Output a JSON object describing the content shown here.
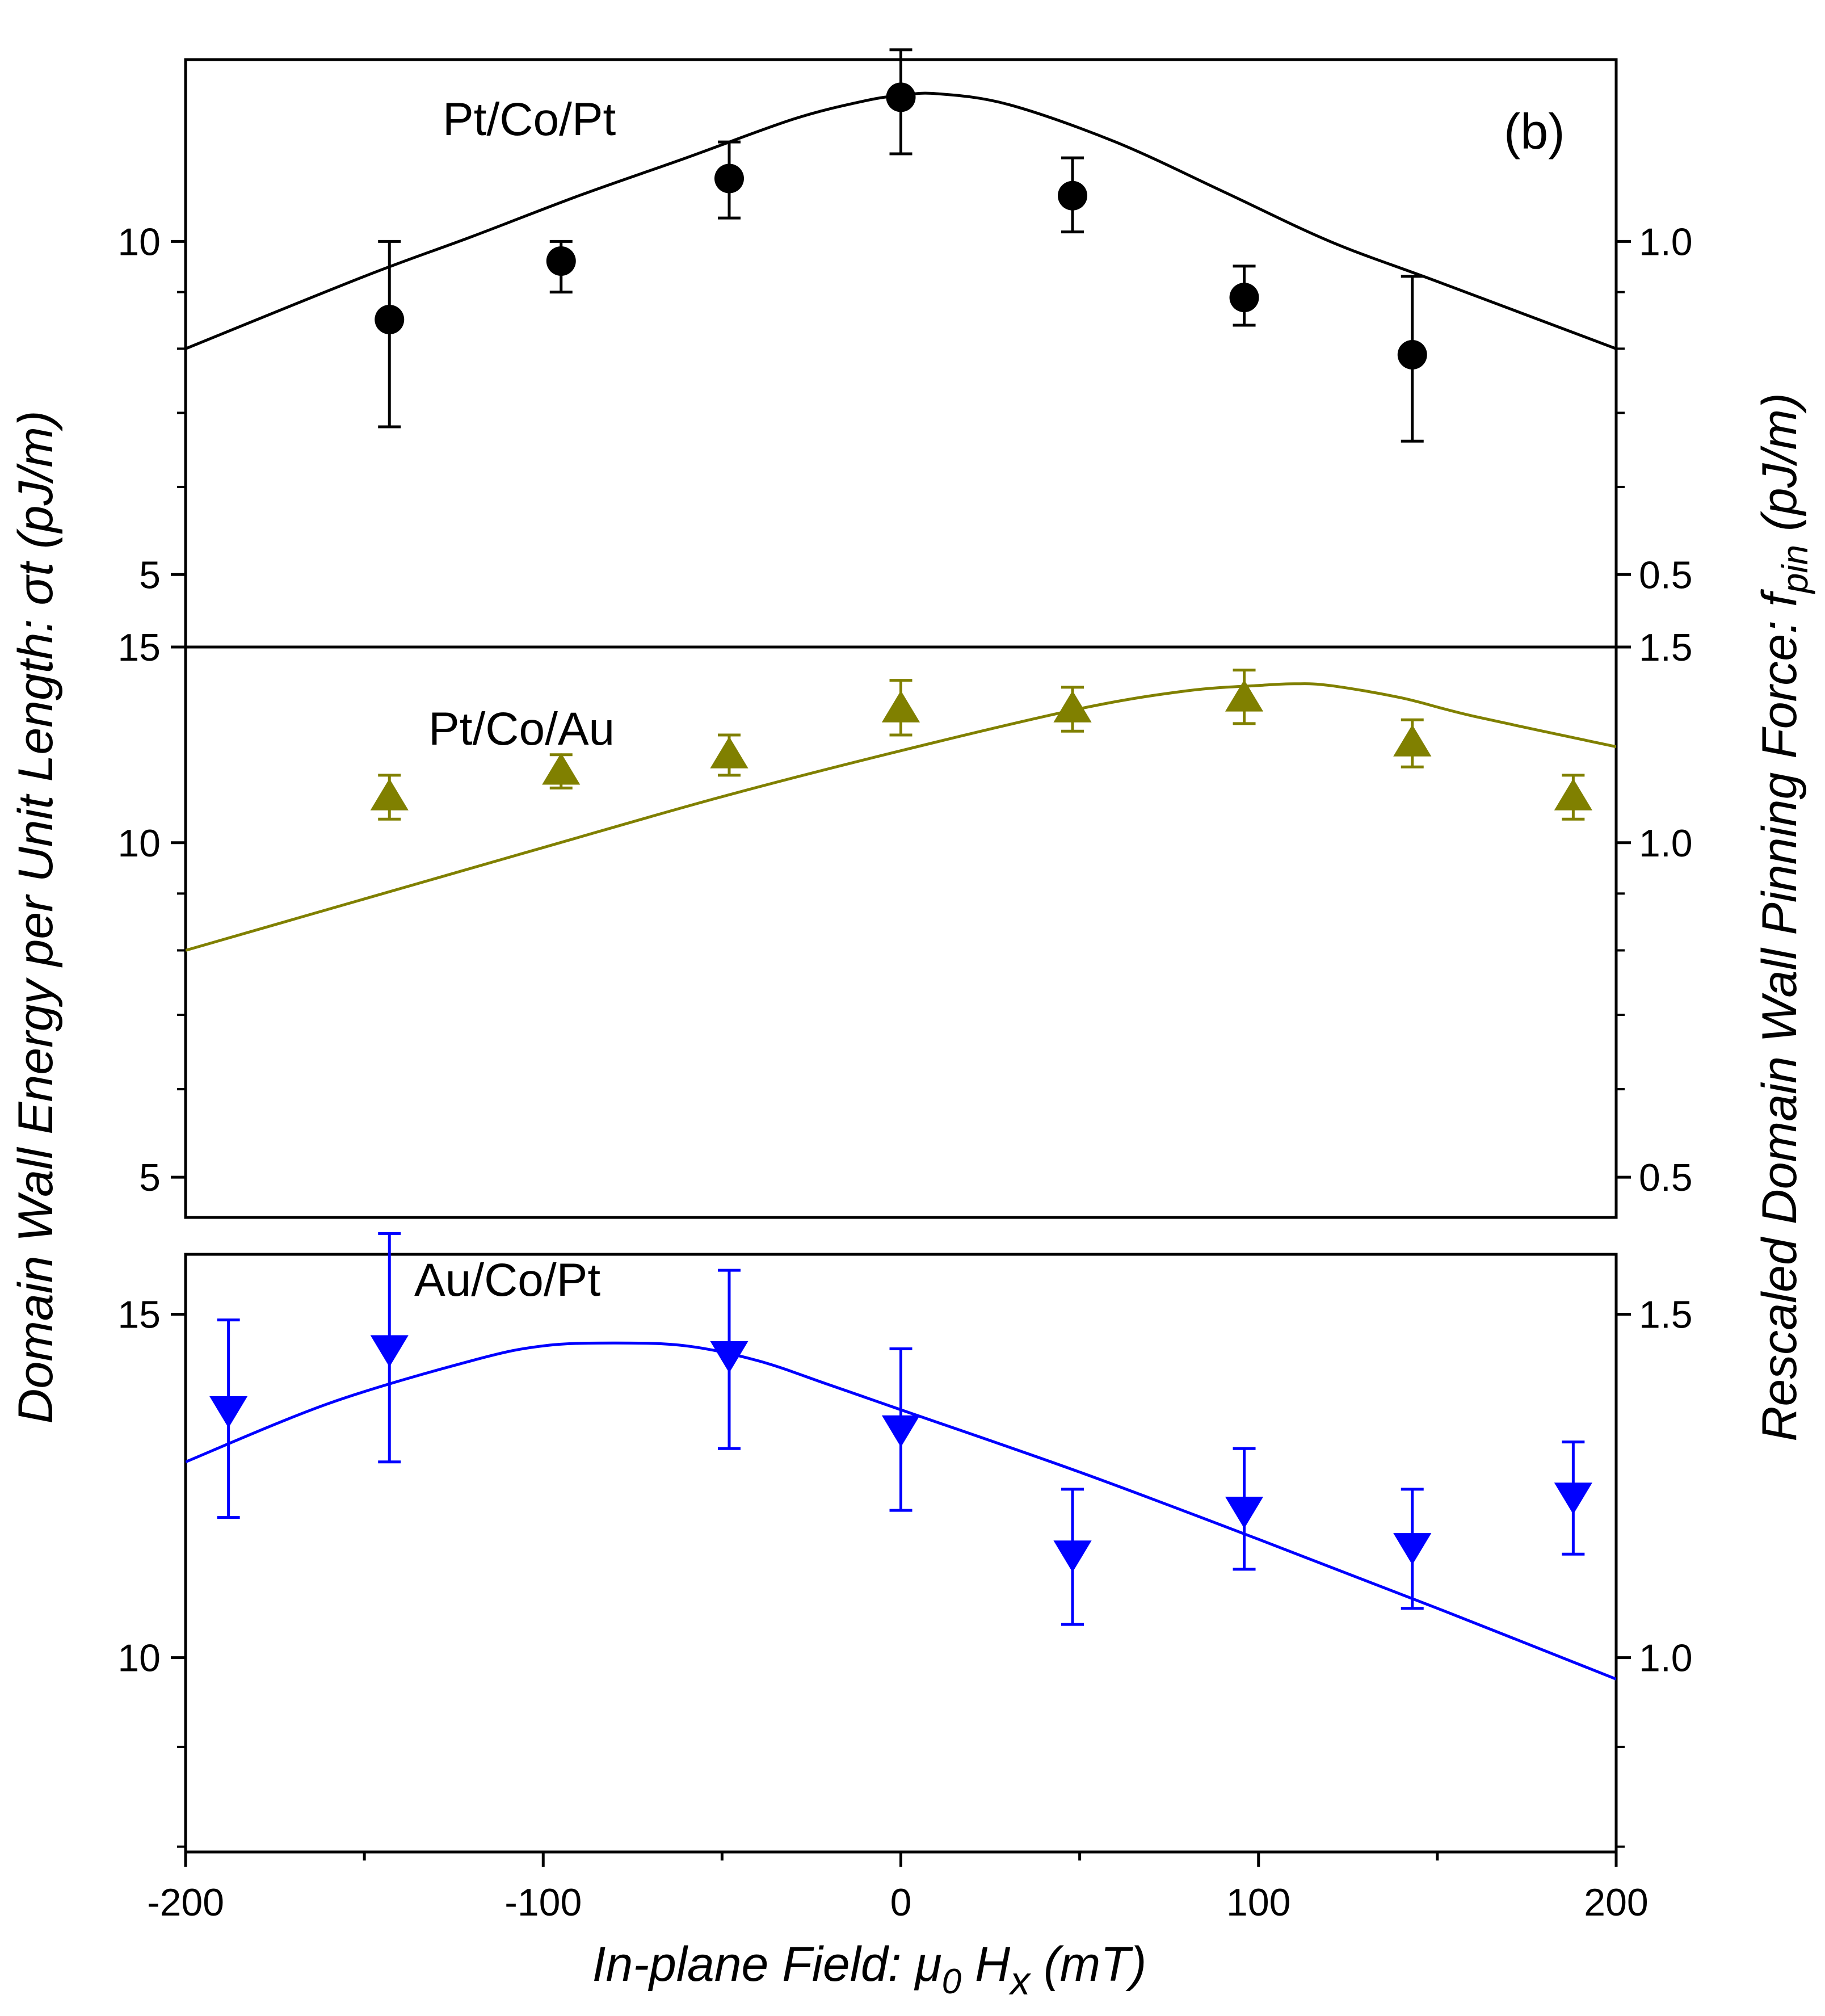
{
  "chart_data": {
    "type": "scatter",
    "panel_letter": "(b)",
    "xlabel": "In-plane Field: μ0 Hx (mT)",
    "xlabel_parts": {
      "prefix": "In-plane Field: μ",
      "sub0": "0",
      "mid": " H",
      "subx": "x",
      "suffix": " (mT)"
    },
    "ylabel_left": "Domain Wall Energy per Unit Length: σt (pJ/m)",
    "ylabel_right": "Rescaled Domain Wall Pinning Force: fpin (pJ/m)",
    "ylabel_right_parts": {
      "prefix": "Rescaled Domain Wall Pinning Force: f",
      "sub": "pin",
      "suffix": " (pJ/m)"
    },
    "xlim": [
      -200,
      200
    ],
    "x_ticks": [
      -200,
      -100,
      0,
      100,
      200
    ],
    "x_tick_labels": [
      "-200",
      "-100",
      "0",
      "100",
      "200"
    ],
    "y_scale": "log",
    "panels": [
      {
        "name": "Pt/Co/Pt",
        "color": "#000000",
        "marker": "circle",
        "ylim": [
          4.3,
          14.6
        ],
        "yticks_left": [
          5,
          10
        ],
        "ytick_labels_left": [
          "5",
          "10"
        ],
        "ytick_labels_right": [
          "0.5",
          "1.0"
        ],
        "points": [
          {
            "x": -143,
            "y": 8.5,
            "err_low": 1.7,
            "err_high": 1.5
          },
          {
            "x": -95,
            "y": 9.6,
            "err_low": 0.6,
            "err_high": 0.4
          },
          {
            "x": -48,
            "y": 11.4,
            "err_low": 0.9,
            "err_high": 0.9
          },
          {
            "x": 0,
            "y": 13.5,
            "err_low": 1.5,
            "err_high": 1.4
          },
          {
            "x": 48,
            "y": 11.0,
            "err_low": 0.8,
            "err_high": 0.9
          },
          {
            "x": 96,
            "y": 8.9,
            "err_low": 0.5,
            "err_high": 0.6
          },
          {
            "x": 143,
            "y": 7.9,
            "err_low": 1.3,
            "err_high": 1.4
          }
        ],
        "fit": {
          "x": [
            -200,
            -150,
            -120,
            -90,
            -60,
            -30,
            -10,
            0,
            10,
            30,
            60,
            90,
            120,
            150,
            200
          ],
          "y": [
            8.0,
            9.3,
            10.1,
            11.0,
            11.9,
            12.9,
            13.4,
            13.55,
            13.6,
            13.3,
            12.3,
            11.1,
            10.0,
            9.2,
            8.0
          ]
        }
      },
      {
        "name": "Pt/Co/Au",
        "color": "#808000",
        "marker": "triangle-up",
        "ylim": [
          4.6,
          15.0
        ],
        "yticks_left": [
          5,
          10,
          15
        ],
        "ytick_labels_left": [
          "5",
          "10",
          "15"
        ],
        "ytick_labels_right": [
          "0.5",
          "1.0",
          "1.5"
        ],
        "points": [
          {
            "x": -143,
            "y": 11.0,
            "err_low": 0.5,
            "err_high": 0.5
          },
          {
            "x": -95,
            "y": 11.6,
            "err_low": 0.4,
            "err_high": 0.4
          },
          {
            "x": -48,
            "y": 12.0,
            "err_low": 0.5,
            "err_high": 0.5
          },
          {
            "x": 0,
            "y": 13.2,
            "err_low": 0.7,
            "err_high": 0.8
          },
          {
            "x": 48,
            "y": 13.2,
            "err_low": 0.6,
            "err_high": 0.6
          },
          {
            "x": 96,
            "y": 13.5,
            "err_low": 0.7,
            "err_high": 0.8
          },
          {
            "x": 143,
            "y": 12.3,
            "err_low": 0.6,
            "err_high": 0.6
          },
          {
            "x": 188,
            "y": 11.0,
            "err_low": 0.5,
            "err_high": 0.5
          }
        ],
        "fit": {
          "x": [
            -200,
            -150,
            -100,
            -50,
            0,
            50,
            80,
            100,
            110,
            120,
            140,
            160,
            200
          ],
          "y": [
            8.0,
            8.9,
            9.9,
            11.0,
            12.1,
            13.2,
            13.7,
            13.85,
            13.9,
            13.85,
            13.5,
            13.0,
            12.2
          ]
        }
      },
      {
        "name": "Au/Co/Pt",
        "color": "#0000ff",
        "marker": "triangle-down",
        "ylim": [
          7.95,
          16.1
        ],
        "yticks_left": [
          10,
          15
        ],
        "ytick_labels_left": [
          "10",
          "15"
        ],
        "ytick_labels_right": [
          "1.0",
          "1.5"
        ],
        "points": [
          {
            "x": -188,
            "y": 13.4,
            "err_low": 1.6,
            "err_high": 1.5
          },
          {
            "x": -143,
            "y": 14.4,
            "err_low": 1.8,
            "err_high": 2.1
          },
          {
            "x": -48,
            "y": 14.3,
            "err_low": 1.5,
            "err_high": 1.5
          },
          {
            "x": 0,
            "y": 13.1,
            "err_low": 1.2,
            "err_high": 1.3
          },
          {
            "x": 48,
            "y": 11.3,
            "err_low": 0.9,
            "err_high": 0.9
          },
          {
            "x": 96,
            "y": 11.9,
            "err_low": 0.8,
            "err_high": 0.9
          },
          {
            "x": 143,
            "y": 11.4,
            "err_low": 0.8,
            "err_high": 0.8
          },
          {
            "x": 188,
            "y": 12.1,
            "err_low": 0.8,
            "err_high": 0.8
          }
        ],
        "fit": {
          "x": [
            -200,
            -160,
            -120,
            -100,
            -80,
            -60,
            -40,
            -20,
            0,
            50,
            100,
            150,
            200
          ],
          "y": [
            12.6,
            13.5,
            14.2,
            14.45,
            14.5,
            14.45,
            14.2,
            13.8,
            13.4,
            12.45,
            11.5,
            10.6,
            9.75
          ]
        }
      }
    ]
  }
}
